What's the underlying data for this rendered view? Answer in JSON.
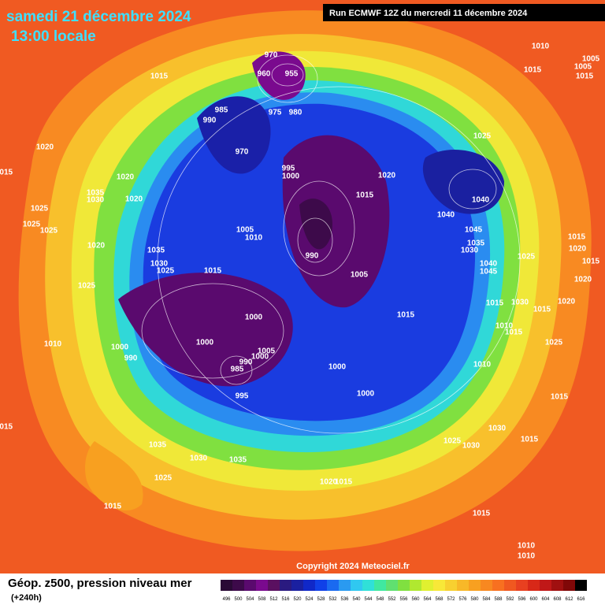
{
  "date": "samedi 21 décembre 2024",
  "time": "13:00 locale",
  "run": "Run ECMWF 12Z du mercredi 11 décembre 2024",
  "copyright": "Copyright 2024 Meteociel.fr",
  "product": "Géop. z500, pression niveau mer",
  "lead": "(+240h)",
  "colorbar": {
    "values": [
      496,
      500,
      504,
      508,
      512,
      516,
      520,
      524,
      528,
      532,
      536,
      540,
      544,
      548,
      552,
      556,
      560,
      564,
      568,
      572,
      576,
      580,
      584,
      588,
      592,
      596,
      600,
      604,
      608,
      612,
      616
    ],
    "colors": [
      "#2a0a35",
      "#3d0a4a",
      "#5a0a6e",
      "#7a0a8e",
      "#5a1060",
      "#2a1a80",
      "#1a20a0",
      "#1028c8",
      "#1040e8",
      "#1a6af0",
      "#2a9af0",
      "#30c8f0",
      "#30e0d8",
      "#40e8a0",
      "#60e070",
      "#80e040",
      "#b0e830",
      "#e0f030",
      "#f8e838",
      "#f8d030",
      "#f8b828",
      "#f8a020",
      "#f88820",
      "#f87020",
      "#f05820",
      "#e84020",
      "#d82818",
      "#c01818",
      "#a01010",
      "#800808",
      "#000000"
    ]
  },
  "isobar_labels": [
    970,
    960,
    955,
    1015,
    985,
    975,
    980,
    990,
    970,
    995,
    1000,
    1015,
    1020,
    1025,
    1040,
    1040,
    1045,
    1035,
    1030,
    1040,
    1045,
    1025,
    1005,
    1010,
    990,
    1005,
    1035,
    1030,
    1025,
    1015,
    1000,
    1000,
    1015,
    1015,
    1030,
    1010,
    1015,
    1025,
    1010,
    1000,
    1005,
    990,
    1000,
    985,
    995,
    1000,
    1000,
    990,
    1010,
    1025,
    1020,
    1035,
    1030,
    1035,
    1025,
    1015,
    1020,
    1015,
    1025,
    1030,
    1030,
    1015,
    1015,
    1015,
    1010,
    1010,
    1020,
    1015,
    1025,
    1025,
    1025,
    1035,
    1030,
    1020,
    1020,
    1010,
    1015,
    1005,
    1005,
    1015,
    1015,
    1020,
    1015,
    1020,
    1020,
    1015,
    1015
  ]
}
